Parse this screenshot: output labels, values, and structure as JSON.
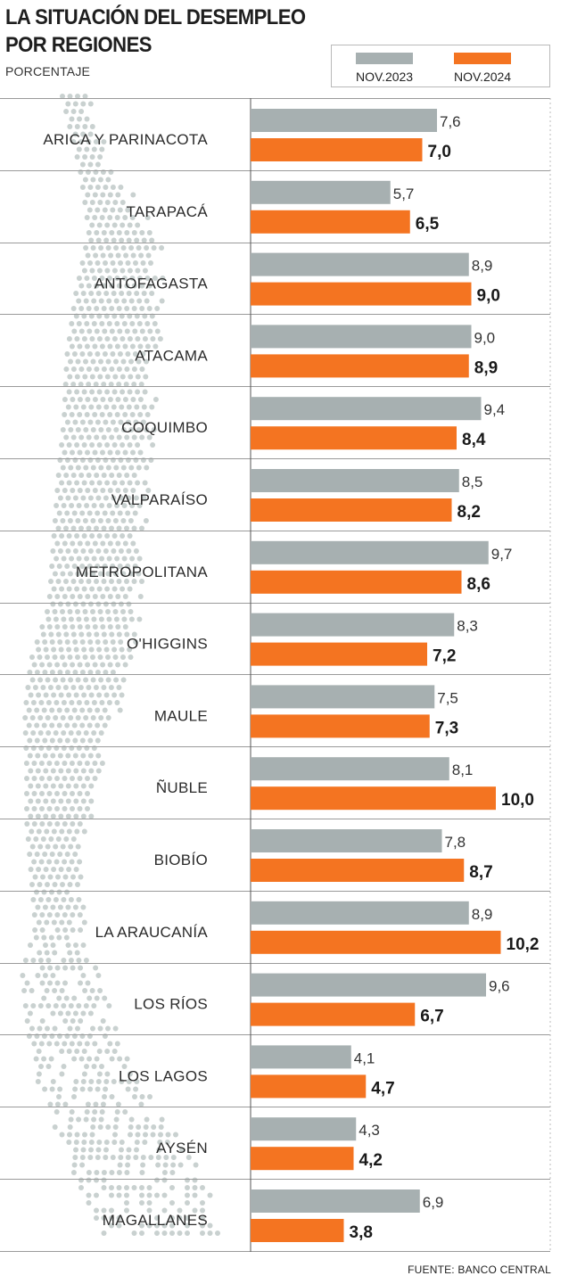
{
  "header": {
    "title_line1": "LA SITUACIÓN DEL DESEMPLEO",
    "title_line2": "POR REGIONES",
    "subtitle": "PORCENTAJE"
  },
  "legend": [
    {
      "label": "NOV.2023",
      "color": "#a7b0b1"
    },
    {
      "label": "NOV.2024",
      "color": "#f47421"
    }
  ],
  "source": "FUENTE: BANCO CENTRAL",
  "chart_data": {
    "type": "bar",
    "orientation": "horizontal",
    "title": "LA SITUACIÓN DEL DESEMPLEO POR REGIONES",
    "subtitle": "PORCENTAJE",
    "categories": [
      "ARICA Y PARINACOTA",
      "TARAPACÁ",
      "ANTOFAGASTA",
      "ATACAMA",
      "COQUIMBO",
      "VALPARAÍSO",
      "METROPOLITANA",
      "O'HIGGINS",
      "MAULE",
      "ÑUBLE",
      "BIOBÍO",
      "LA ARAUCANÍA",
      "LOS RÍOS",
      "LOS LAGOS",
      "AYSÉN",
      "MAGALLANES"
    ],
    "series": [
      {
        "name": "NOV.2023",
        "color": "#a7b0b1",
        "values": [
          7.6,
          5.7,
          8.9,
          9.0,
          9.4,
          8.5,
          9.7,
          8.3,
          7.5,
          8.1,
          7.8,
          8.9,
          9.6,
          4.1,
          4.3,
          6.9
        ],
        "labels": [
          "7,6",
          "5,7",
          "8,9",
          "9,0",
          "9,4",
          "8,5",
          "9,7",
          "8,3",
          "7,5",
          "8,1",
          "7,8",
          "8,9",
          "9,6",
          "4,1",
          "4,3",
          "6,9"
        ]
      },
      {
        "name": "NOV.2024",
        "color": "#f47421",
        "values": [
          7.0,
          6.5,
          9.0,
          8.9,
          8.4,
          8.2,
          8.6,
          7.2,
          7.3,
          10.0,
          8.7,
          10.2,
          6.7,
          4.7,
          4.2,
          3.8
        ],
        "labels": [
          "7,0",
          "6,5",
          "9,0",
          "8,9",
          "8,4",
          "8,2",
          "8,6",
          "7,2",
          "7,3",
          "10,0",
          "8,7",
          "10,2",
          "6,7",
          "4,7",
          "4,2",
          "3,8"
        ]
      }
    ],
    "xlim": [
      0,
      10.2
    ],
    "legend_position": "top-right",
    "grid": false
  }
}
